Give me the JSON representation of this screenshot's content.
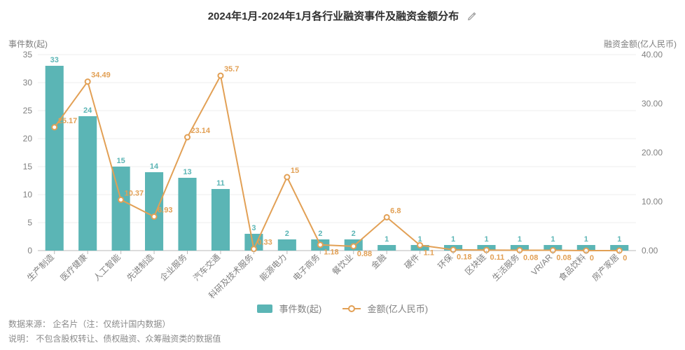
{
  "title": "2024年1月-2024年1月各行业融资事件及融资金额分布",
  "y_left": {
    "title": "事件数(起)",
    "min": 0,
    "max": 35,
    "step": 5
  },
  "y_right": {
    "title": "融资金额(亿人民币)",
    "min": 0,
    "max": 40,
    "step": 10,
    "decimals": 2
  },
  "series": {
    "bar": {
      "name": "事件数(起)",
      "color": "#5bb5b5"
    },
    "line": {
      "name": "金额(亿人民币)",
      "color": "#e2a055"
    }
  },
  "categories": [
    "生产制造",
    "医疗健康",
    "人工智能",
    "先进制造",
    "企业服务",
    "汽车交通",
    "科研及技术服务",
    "能源电力",
    "电子商务",
    "餐饮业",
    "金融",
    "硬件",
    "环保",
    "区块链",
    "生活服务",
    "VR/AR",
    "食品饮料",
    "房产家居"
  ],
  "bar_values": [
    33,
    24,
    15,
    14,
    13,
    11,
    3,
    2,
    2,
    2,
    1,
    1,
    1,
    1,
    1,
    1,
    1,
    1
  ],
  "line_values": [
    25.17,
    34.49,
    10.37,
    6.93,
    23.14,
    35.7,
    0.33,
    15,
    1.18,
    0.88,
    6.8,
    1.1,
    0.18,
    0.11,
    0.08,
    0.08,
    0,
    0
  ],
  "style": {
    "background": "#ffffff",
    "grid_color": "#ececec",
    "axis_color": "#b8b8b8",
    "tick_font_size": 12,
    "label_font_size": 11,
    "bar_width_ratio": 0.55,
    "marker_radius": 3.5,
    "x_label_rotate": -45
  },
  "legend": {
    "bar": "事件数(起)",
    "line": "金额(亿人民币)"
  },
  "footer": {
    "line1_label": "数据来源：",
    "line1_value": "企名片（注：仅统计国内数据）",
    "line2_label": "说明：",
    "line2_value": "不包含股权转让、债权融资、众筹融资类的数据值"
  }
}
